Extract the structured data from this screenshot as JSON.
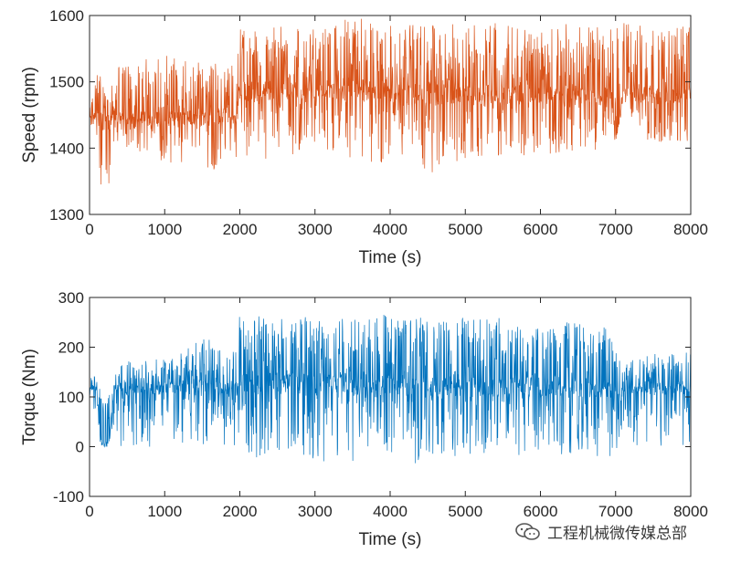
{
  "chart_data": [
    {
      "type": "line",
      "xlabel": "Time (s)",
      "ylabel": "Speed (rpm)",
      "xlim": [
        0,
        8000
      ],
      "ylim": [
        1300,
        1600
      ],
      "xticks": [
        "0",
        "1000",
        "2000",
        "3000",
        "4000",
        "5000",
        "6000",
        "7000",
        "8000"
      ],
      "yticks": [
        "1300",
        "1400",
        "1500",
        "1600"
      ],
      "xtick_values": [
        0,
        1000,
        2000,
        3000,
        4000,
        5000,
        6000,
        7000,
        8000
      ],
      "ytick_values": [
        1300,
        1400,
        1500,
        1600
      ],
      "series": [
        {
          "name": "Speed",
          "color": "#D95319",
          "envelope": {
            "x": [
              0,
              100,
              150,
              250,
              330,
              400,
              1000,
              1500,
              1950,
              2000,
              2100,
              3000,
              3500,
              4000,
              4250,
              4500,
              5000,
              6000,
              6950,
              7000,
              7100,
              7500,
              8000
            ],
            "low": [
              1430,
              1400,
              1340,
              1340,
              1400,
              1400,
              1380,
              1360,
              1370,
              1360,
              1380,
              1390,
              1370,
              1380,
              1390,
              1360,
              1380,
              1390,
              1400,
              1410,
              1460,
              1400,
              1400
            ],
            "high": [
              1460,
              1510,
              1520,
              1470,
              1510,
              1530,
              1540,
              1530,
              1535,
              1580,
              1580,
              1590,
              1595,
              1595,
              1590,
              1590,
              1590,
              1590,
              1585,
              1590,
              1590,
              1590,
              1590
            ],
            "base": [
              1445,
              1445,
              1443,
              1443,
              1445,
              1445,
              1445,
              1445,
              1450,
              1490,
              1485,
              1487,
              1490,
              1485,
              1480,
              1483,
              1480,
              1480,
              1480,
              1410,
              1480,
              1480,
              1480
            ]
          }
        }
      ]
    },
    {
      "type": "line",
      "xlabel": "Time (s)",
      "ylabel": "Torque (Nm)",
      "xlim": [
        0,
        8000
      ],
      "ylim": [
        -100,
        300
      ],
      "xticks": [
        "0",
        "1000",
        "2000",
        "3000",
        "4000",
        "5000",
        "6000",
        "7000",
        "8000"
      ],
      "yticks": [
        "-100",
        "0",
        "100",
        "200",
        "300"
      ],
      "xtick_values": [
        0,
        1000,
        2000,
        3000,
        4000,
        5000,
        6000,
        7000,
        8000
      ],
      "ytick_values": [
        -100,
        0,
        100,
        200,
        300
      ],
      "series": [
        {
          "name": "Torque",
          "color": "#0072BD",
          "envelope": {
            "x": [
              0,
              100,
              150,
              250,
              330,
              400,
              1000,
              1500,
              1950,
              2000,
              2100,
              3000,
              3500,
              4000,
              4250,
              4500,
              5000,
              6000,
              6950,
              7000,
              7100,
              7500,
              8000
            ],
            "low": [
              80,
              60,
              0,
              0,
              40,
              0,
              -10,
              -10,
              0,
              -10,
              -20,
              -30,
              -30,
              -20,
              -30,
              -40,
              -20,
              -20,
              -30,
              -30,
              0,
              0,
              0
            ],
            "high": [
              145,
              140,
              130,
              130,
              140,
              170,
              180,
              220,
              200,
              280,
              270,
              260,
              260,
              270,
              260,
              260,
              260,
              260,
              240,
              200,
              170,
              190,
              190
            ],
            "base": [
              115,
              115,
              5,
              5,
              118,
              118,
              118,
              118,
              118,
              130,
              128,
              126,
              126,
              124,
              122,
              120,
              120,
              120,
              118,
              60,
              118,
              118,
              118
            ]
          }
        }
      ]
    }
  ],
  "watermark": {
    "icon": "wechat-icon",
    "text": "工程机械微传媒总部"
  }
}
